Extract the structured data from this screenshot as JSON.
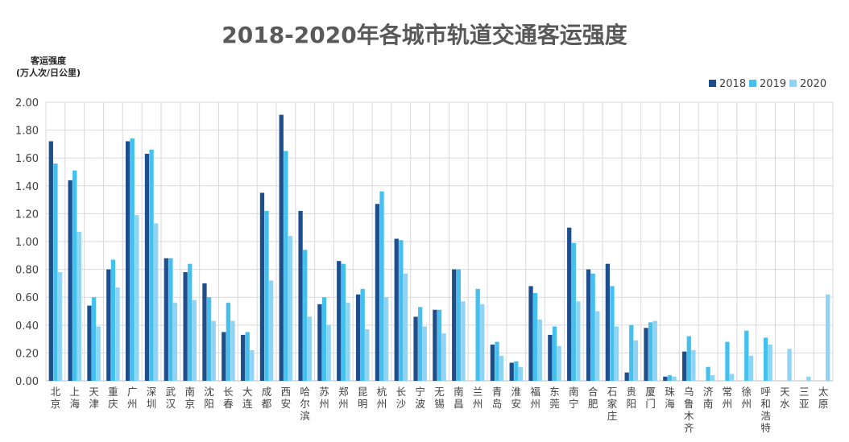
{
  "chart_data": {
    "type": "bar",
    "title": "2018-2020年各城市轨道交通客运强度",
    "ylabel": [
      "客运强度",
      "(万人次/日公里)"
    ],
    "ylim": [
      0,
      2.0
    ],
    "yticks": [
      "0.00",
      "0.20",
      "0.40",
      "0.60",
      "0.80",
      "1.00",
      "1.20",
      "1.40",
      "1.60",
      "1.80",
      "2.00"
    ],
    "grid": true,
    "legend_position": "top-right",
    "categories": [
      "北京",
      "上海",
      "天津",
      "重庆",
      "广州",
      "深圳",
      "武汉",
      "南京",
      "沈阳",
      "长春",
      "大连",
      "成都",
      "西安",
      "哈尔滨",
      "苏州",
      "郑州",
      "昆明",
      "杭州",
      "长沙",
      "宁波",
      "无锡",
      "南昌",
      "兰州",
      "青岛",
      "淮安",
      "福州",
      "东莞",
      "南宁",
      "合肥",
      "石家庄",
      "贵阳",
      "厦门",
      "珠海",
      "乌鲁木齐",
      "济南",
      "常州",
      "徐州",
      "呼和浩特",
      "天水",
      "三亚",
      "太原"
    ],
    "series": [
      {
        "name": "2018",
        "color": "#1f4e8c",
        "values": [
          1.72,
          1.44,
          0.54,
          0.8,
          1.72,
          1.63,
          0.88,
          0.78,
          0.7,
          0.35,
          0.33,
          1.35,
          1.91,
          1.22,
          0.55,
          0.86,
          0.62,
          1.27,
          1.02,
          0.46,
          0.51,
          0.8,
          null,
          0.26,
          0.13,
          0.68,
          0.33,
          1.1,
          0.8,
          0.84,
          0.06,
          0.38,
          0.03,
          0.21,
          null,
          null,
          null,
          null,
          null,
          null,
          null
        ]
      },
      {
        "name": "2019",
        "color": "#44c0ee",
        "values": [
          1.56,
          1.51,
          0.6,
          0.87,
          1.74,
          1.66,
          0.88,
          0.84,
          0.6,
          0.56,
          0.35,
          1.22,
          1.65,
          0.94,
          0.6,
          0.84,
          0.66,
          1.36,
          1.01,
          0.53,
          0.51,
          0.8,
          0.66,
          0.28,
          0.14,
          0.63,
          0.39,
          0.99,
          0.77,
          0.68,
          0.4,
          0.42,
          0.04,
          0.32,
          0.1,
          0.28,
          0.36,
          0.31,
          null,
          null,
          null
        ]
      },
      {
        "name": "2020",
        "color": "#8fd4f5",
        "values": [
          0.78,
          1.07,
          0.39,
          0.67,
          1.19,
          1.13,
          0.56,
          0.58,
          0.43,
          0.43,
          0.22,
          0.72,
          1.04,
          0.46,
          0.4,
          0.56,
          0.37,
          0.6,
          0.77,
          0.39,
          0.34,
          0.57,
          0.55,
          0.18,
          0.1,
          0.44,
          0.25,
          0.57,
          0.5,
          0.39,
          0.29,
          0.43,
          0.03,
          0.22,
          0.04,
          0.05,
          0.18,
          0.26,
          0.23,
          0.03,
          0.62
        ]
      }
    ]
  }
}
